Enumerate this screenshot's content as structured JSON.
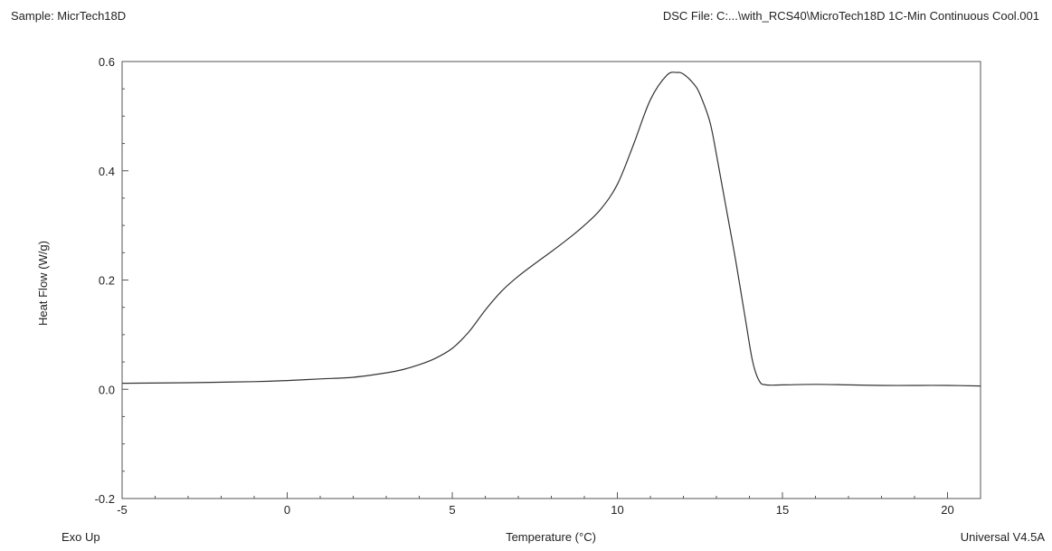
{
  "header": {
    "sample": "Sample: MicrTech18D",
    "file": "DSC File: C:...\\with_RCS40\\MicroTech18D 1C-Min Continuous Cool.001"
  },
  "footer": {
    "exo": "Exo Up",
    "software": "Universal V4.5A"
  },
  "chart_data": {
    "type": "line",
    "title": "",
    "xlabel": "Temperature (°C)",
    "ylabel": "Heat Flow (W/g)",
    "xlim": [
      -5,
      21
    ],
    "ylim": [
      -0.2,
      0.6
    ],
    "xticks": [
      -5,
      0,
      5,
      10,
      15,
      20
    ],
    "xtick_labels": [
      "-5",
      "0",
      "5",
      "10",
      "15",
      "20"
    ],
    "yticks": [
      -0.2,
      0.0,
      0.2,
      0.4,
      0.6
    ],
    "ytick_labels": [
      "-0.2",
      "0.0",
      "0.2",
      "0.4",
      "0.6"
    ],
    "grid": false,
    "colors": {
      "line": "#333333",
      "axis": "#555555"
    },
    "series": [
      {
        "x": [
          -5,
          -3,
          -1,
          0,
          1,
          2,
          3,
          3.5,
          4,
          4.5,
          5,
          5.5,
          6,
          6.5,
          7,
          7.5,
          8,
          8.5,
          9,
          9.5,
          10,
          10.5,
          11,
          11.5,
          11.8,
          12,
          12.3,
          12.5,
          12.8,
          13,
          13.3,
          13.6,
          13.9,
          14.1,
          14.3,
          14.5,
          15,
          16,
          17,
          18,
          19,
          20,
          21
        ],
        "y": [
          0.011,
          0.012,
          0.014,
          0.016,
          0.019,
          0.022,
          0.03,
          0.036,
          0.045,
          0.057,
          0.075,
          0.105,
          0.145,
          0.18,
          0.207,
          0.23,
          0.252,
          0.275,
          0.3,
          0.33,
          0.375,
          0.45,
          0.53,
          0.575,
          0.58,
          0.577,
          0.56,
          0.54,
          0.49,
          0.43,
          0.33,
          0.23,
          0.12,
          0.05,
          0.015,
          0.008,
          0.008,
          0.009,
          0.008,
          0.007,
          0.007,
          0.007,
          0.006
        ]
      }
    ]
  }
}
